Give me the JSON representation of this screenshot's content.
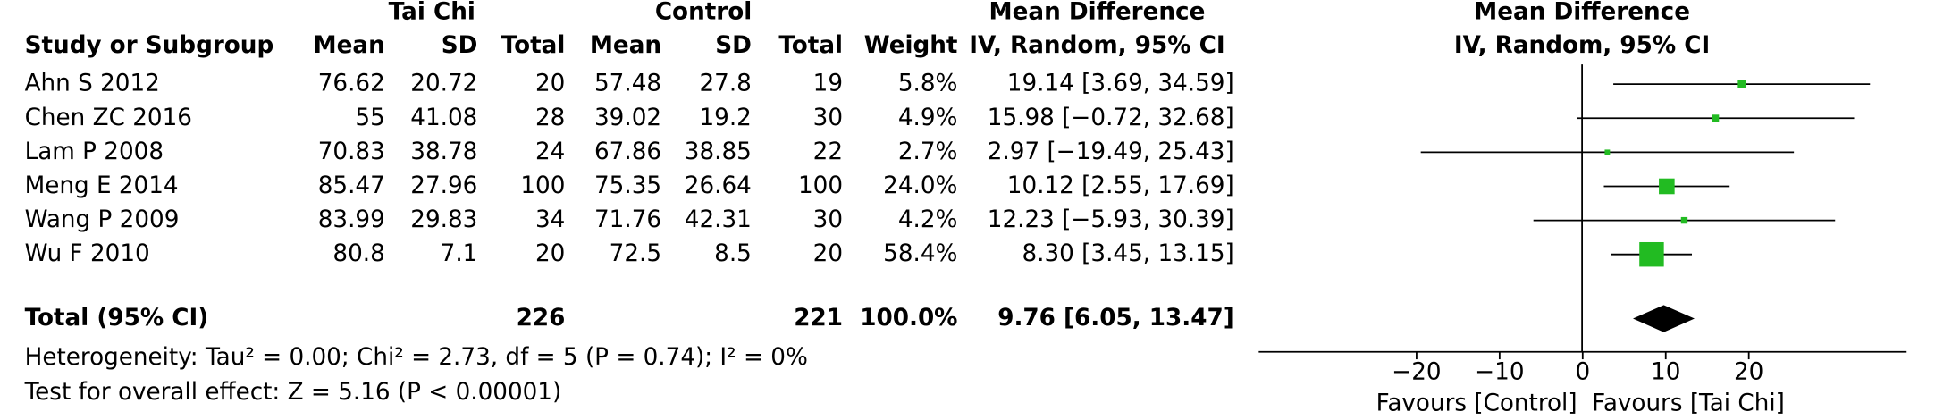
{
  "chart_data": {
    "type": "forest",
    "group_headers": [
      "Tai Chi",
      "Control"
    ],
    "columns": [
      "Study or Subgroup",
      "Mean",
      "SD",
      "Total",
      "Mean",
      "SD",
      "Total",
      "Weight",
      "IV, Random, 95% CI"
    ],
    "effect_header": "Mean Difference",
    "studies": [
      {
        "name": "Ahn S 2012",
        "mean1": 76.62,
        "sd1": 20.72,
        "n1": 20,
        "mean2": 57.48,
        "sd2": 27.8,
        "n2": 19,
        "weight": 5.8,
        "weight_label": "5.8%",
        "md": 19.14,
        "lower": 3.69,
        "upper": 34.59,
        "ci_label": "19.14 [3.69, 34.59]"
      },
      {
        "name": "Chen ZC 2016",
        "mean1": 55,
        "sd1": 41.08,
        "n1": 28,
        "mean2": 39.02,
        "sd2": 19.2,
        "n2": 30,
        "weight": 4.9,
        "weight_label": "4.9%",
        "md": 15.98,
        "lower": -0.72,
        "upper": 32.68,
        "ci_label": "15.98 [−0.72, 32.68]"
      },
      {
        "name": "Lam P 2008",
        "mean1": 70.83,
        "sd1": 38.78,
        "n1": 24,
        "mean2": 67.86,
        "sd2": 38.85,
        "n2": 22,
        "weight": 2.7,
        "weight_label": "2.7%",
        "md": 2.97,
        "lower": -19.49,
        "upper": 25.43,
        "ci_label": "2.97 [−19.49, 25.43]"
      },
      {
        "name": "Meng E 2014",
        "mean1": 85.47,
        "sd1": 27.96,
        "n1": 100,
        "mean2": 75.35,
        "sd2": 26.64,
        "n2": 100,
        "weight": 24.0,
        "weight_label": "24.0%",
        "md": 10.12,
        "lower": 2.55,
        "upper": 17.69,
        "ci_label": "10.12 [2.55, 17.69]"
      },
      {
        "name": "Wang P 2009",
        "mean1": 83.99,
        "sd1": 29.83,
        "n1": 34,
        "mean2": 71.76,
        "sd2": 42.31,
        "n2": 30,
        "weight": 4.2,
        "weight_label": "4.2%",
        "md": 12.23,
        "lower": -5.93,
        "upper": 30.39,
        "ci_label": "12.23 [−5.93, 30.39]"
      },
      {
        "name": "Wu F 2010",
        "mean1": 80.8,
        "sd1": 7.1,
        "n1": 20,
        "mean2": 72.5,
        "sd2": 8.5,
        "n2": 20,
        "weight": 58.4,
        "weight_label": "58.4%",
        "md": 8.3,
        "lower": 3.45,
        "upper": 13.15,
        "ci_label": "8.30 [3.45, 13.15]"
      }
    ],
    "total": {
      "name": "Total (95% CI)",
      "n1": 226,
      "n2": 221,
      "weight_label": "100.0%",
      "md": 9.76,
      "lower": 6.05,
      "upper": 13.47,
      "ci_label": "9.76 [6.05, 13.47]"
    },
    "heterogeneity": "Heterogeneity: Tau² = 0.00; Chi² = 2.73, df = 5 (P = 0.74); I² = 0%",
    "overall_effect": "Test for overall effect: Z = 5.16 (P < 0.00001)",
    "xlim": [
      -39,
      39
    ],
    "xticks": [
      {
        "value": -20,
        "label": "−20"
      },
      {
        "value": -10,
        "label": "−10"
      },
      0,
      10,
      20
    ],
    "xlabels": [
      "Favours [Control]",
      "Favours [Tai Chi]"
    ],
    "marker_color": "#22bb22"
  }
}
